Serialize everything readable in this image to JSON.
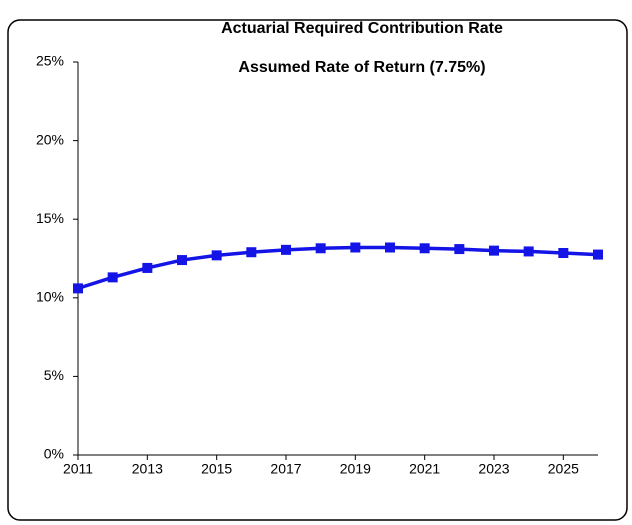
{
  "chart_data": {
    "type": "line",
    "title": "Actuarial Required Contribution Rate",
    "subtitle": "Assumed Rate of Return (7.75%)",
    "x": [
      2011,
      2012,
      2013,
      2014,
      2015,
      2016,
      2017,
      2018,
      2019,
      2020,
      2021,
      2022,
      2023,
      2024,
      2025,
      2026
    ],
    "series": [
      {
        "color": "#1414e6",
        "values": [
          10.6,
          11.3,
          11.9,
          12.4,
          12.7,
          12.9,
          13.05,
          13.15,
          13.2,
          13.2,
          13.15,
          13.1,
          13.0,
          12.95,
          12.85,
          12.75
        ]
      }
    ],
    "xlim": [
      2011,
      2026
    ],
    "xticks": [
      2011,
      2013,
      2015,
      2017,
      2019,
      2021,
      2023,
      2025
    ],
    "ylim": [
      0,
      25
    ],
    "yticks": [
      {
        "value": 0,
        "label": "0%"
      },
      {
        "value": 5,
        "label": "5%"
      },
      {
        "value": 10,
        "label": "10%"
      },
      {
        "value": 15,
        "label": "15%"
      },
      {
        "value": 20,
        "label": "20%"
      },
      {
        "value": 25,
        "label": "25%"
      }
    ],
    "grid": false
  }
}
